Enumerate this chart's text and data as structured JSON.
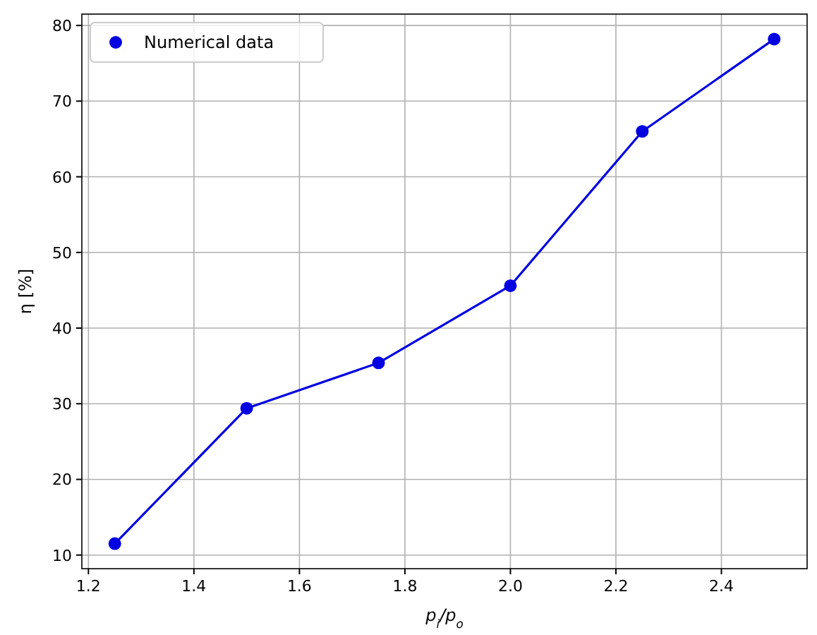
{
  "chart_data": {
    "type": "line",
    "xlabel": "p$_{i}$/p$_{o}$",
    "ylabel": "η [%]",
    "x": [
      1.25,
      1.5,
      1.75,
      2.0,
      2.25,
      2.5
    ],
    "series": [
      {
        "name": "Numerical data",
        "color": "#0000e0",
        "values": [
          11.5,
          29.4,
          35.4,
          45.6,
          66.0,
          78.2
        ]
      }
    ],
    "xlim": [
      1.1875,
      2.5625
    ],
    "xticks": [
      1.2,
      1.4,
      1.6,
      1.8,
      {
        "value": 2,
        "label": "2.0"
      },
      2.2,
      2.4
    ],
    "ylim": [
      8.2,
      81.5
    ],
    "yticks": [
      10,
      20,
      30,
      40,
      50,
      60,
      70,
      80
    ],
    "grid": true,
    "legend": "top left",
    "marker": "circle",
    "line_style": "solid"
  }
}
